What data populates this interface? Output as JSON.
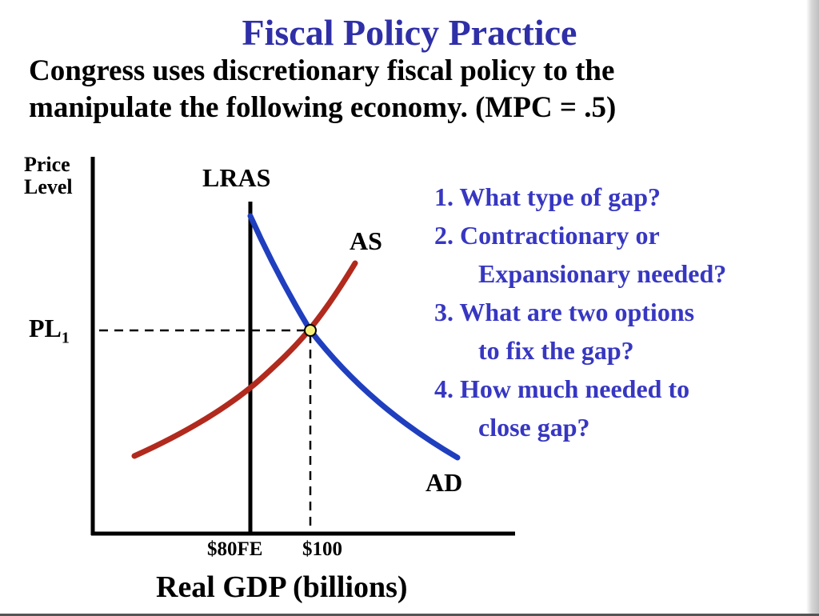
{
  "slide": {
    "title": "Fiscal Policy Practice",
    "subtitle_line1": "Congress uses discretionary fiscal policy to the",
    "subtitle_line2": "manipulate the following economy. (MPC = .5)"
  },
  "questions": [
    {
      "num": "1.",
      "lines": [
        "What type of gap?"
      ]
    },
    {
      "num": "2.",
      "lines": [
        "Contractionary or",
        "Expansionary needed?"
      ]
    },
    {
      "num": "3.",
      "lines": [
        "What are two options",
        "to fix the gap?"
      ]
    },
    {
      "num": "4.",
      "lines": [
        "How much needed to",
        "close gap?"
      ]
    }
  ],
  "graph": {
    "y_axis_label_line1": "Price",
    "y_axis_label_line2": "Level",
    "x_axis_label": "Real GDP (billions)",
    "lras_label": "LRAS",
    "as_label": "AS",
    "ad_label": "AD",
    "pl_label": "PL",
    "pl_subscript": "1",
    "tick_fe": "$80FE",
    "tick_equilibrium": "$100",
    "colors": {
      "as_curve": "#b12a1d",
      "ad_curve": "#1f3fbf",
      "equilibrium_dot": "#f6f07a",
      "axes": "#000000"
    }
  }
}
